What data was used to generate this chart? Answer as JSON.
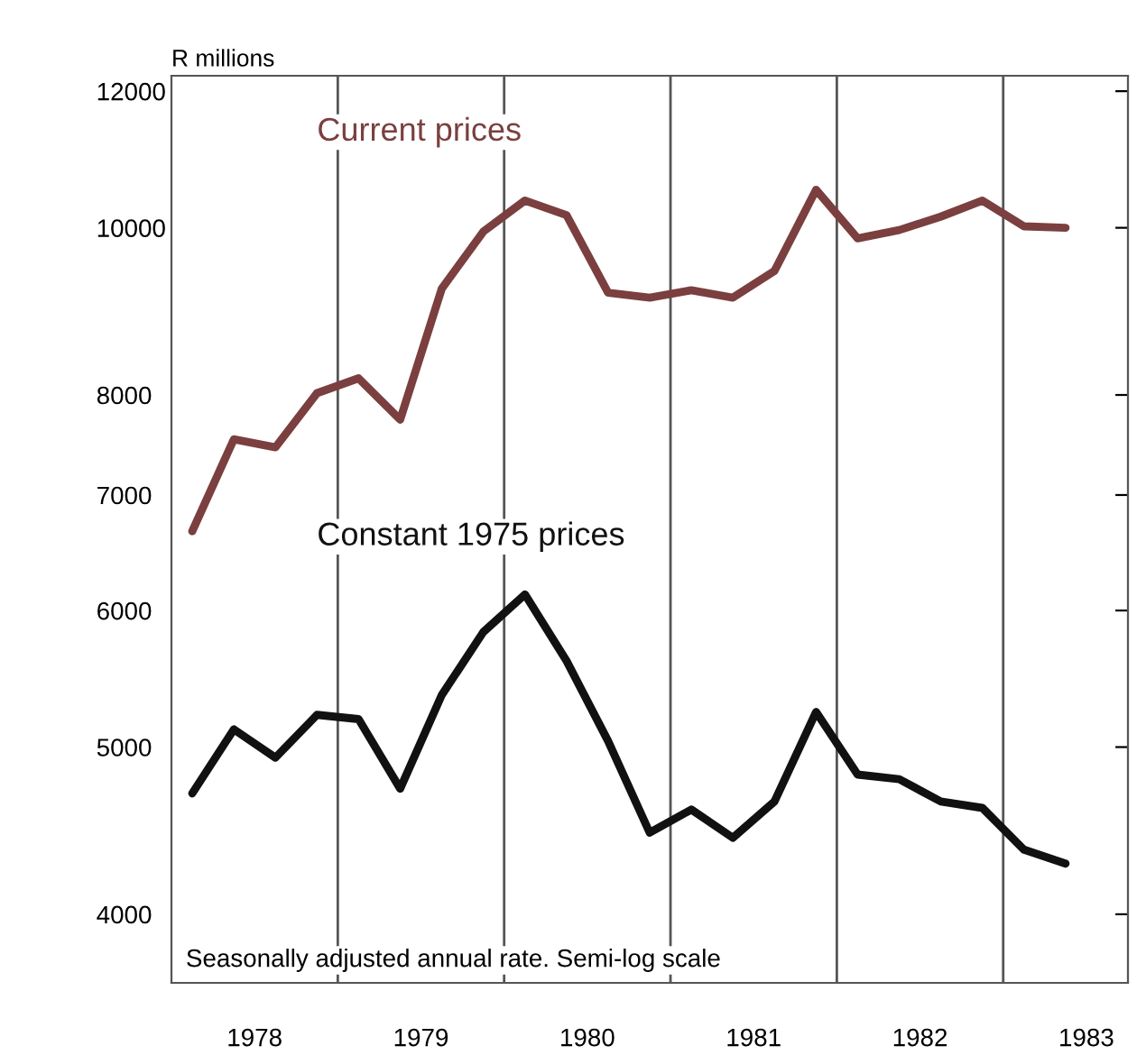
{
  "chart_data": {
    "type": "line",
    "ylabel": "R millions",
    "log": "y",
    "x": [
      1978.125,
      1978.375,
      1978.625,
      1978.875,
      1979.125,
      1979.375,
      1979.625,
      1979.875,
      1980.125,
      1980.375,
      1980.625,
      1980.875,
      1981.125,
      1981.375,
      1981.625,
      1981.875,
      1982.125,
      1982.375,
      1982.625,
      1982.875,
      1983.125,
      1983.375
    ],
    "series": [
      {
        "name": "Current prices",
        "color": "#7b3f3f",
        "values": [
          6670,
          7540,
          7460,
          8020,
          8180,
          7740,
          9220,
          9950,
          10370,
          10170,
          9170,
          9110,
          9200,
          9110,
          9440,
          10520,
          9860,
          9970,
          10150,
          10370,
          10020,
          10000
        ]
      },
      {
        "name": "Constant 1975 prices",
        "color": "#111111",
        "values": [
          4700,
          5120,
          4930,
          5220,
          5190,
          4730,
          5360,
          5830,
          6130,
          5610,
          5040,
          4460,
          4600,
          4430,
          4650,
          5240,
          4820,
          4790,
          4650,
          4610,
          4360,
          4280
        ]
      }
    ],
    "xlim": [
      1978.0,
      1983.75
    ],
    "xticks": [
      {
        "value": 1978.5,
        "label": "1978"
      },
      {
        "value": 1979.5,
        "label": "1979"
      },
      {
        "value": 1980.5,
        "label": "1980"
      },
      {
        "value": 1981.5,
        "label": "1981"
      },
      {
        "value": 1982.5,
        "label": "1982"
      },
      {
        "value": 1983.5,
        "label": "1983"
      }
    ],
    "ylim": [
      3650,
      12250
    ],
    "yticks": [
      4000,
      5000,
      6000,
      7000,
      8000,
      10000,
      12000
    ],
    "ref_lines": [
      {
        "axis": "x",
        "value": 1979,
        "color": "#555555"
      },
      {
        "axis": "x",
        "value": 1980,
        "color": "#555555"
      },
      {
        "axis": "x",
        "value": 1981,
        "color": "#555555"
      },
      {
        "axis": "x",
        "value": 1982,
        "color": "#555555"
      },
      {
        "axis": "x",
        "value": 1983,
        "color": "#555555"
      }
    ],
    "annotations": [
      "Seasonally adjusted annual rate. Semi-log scale"
    ],
    "grid": false,
    "legend": false,
    "marker": "none",
    "line_style": "solid"
  }
}
